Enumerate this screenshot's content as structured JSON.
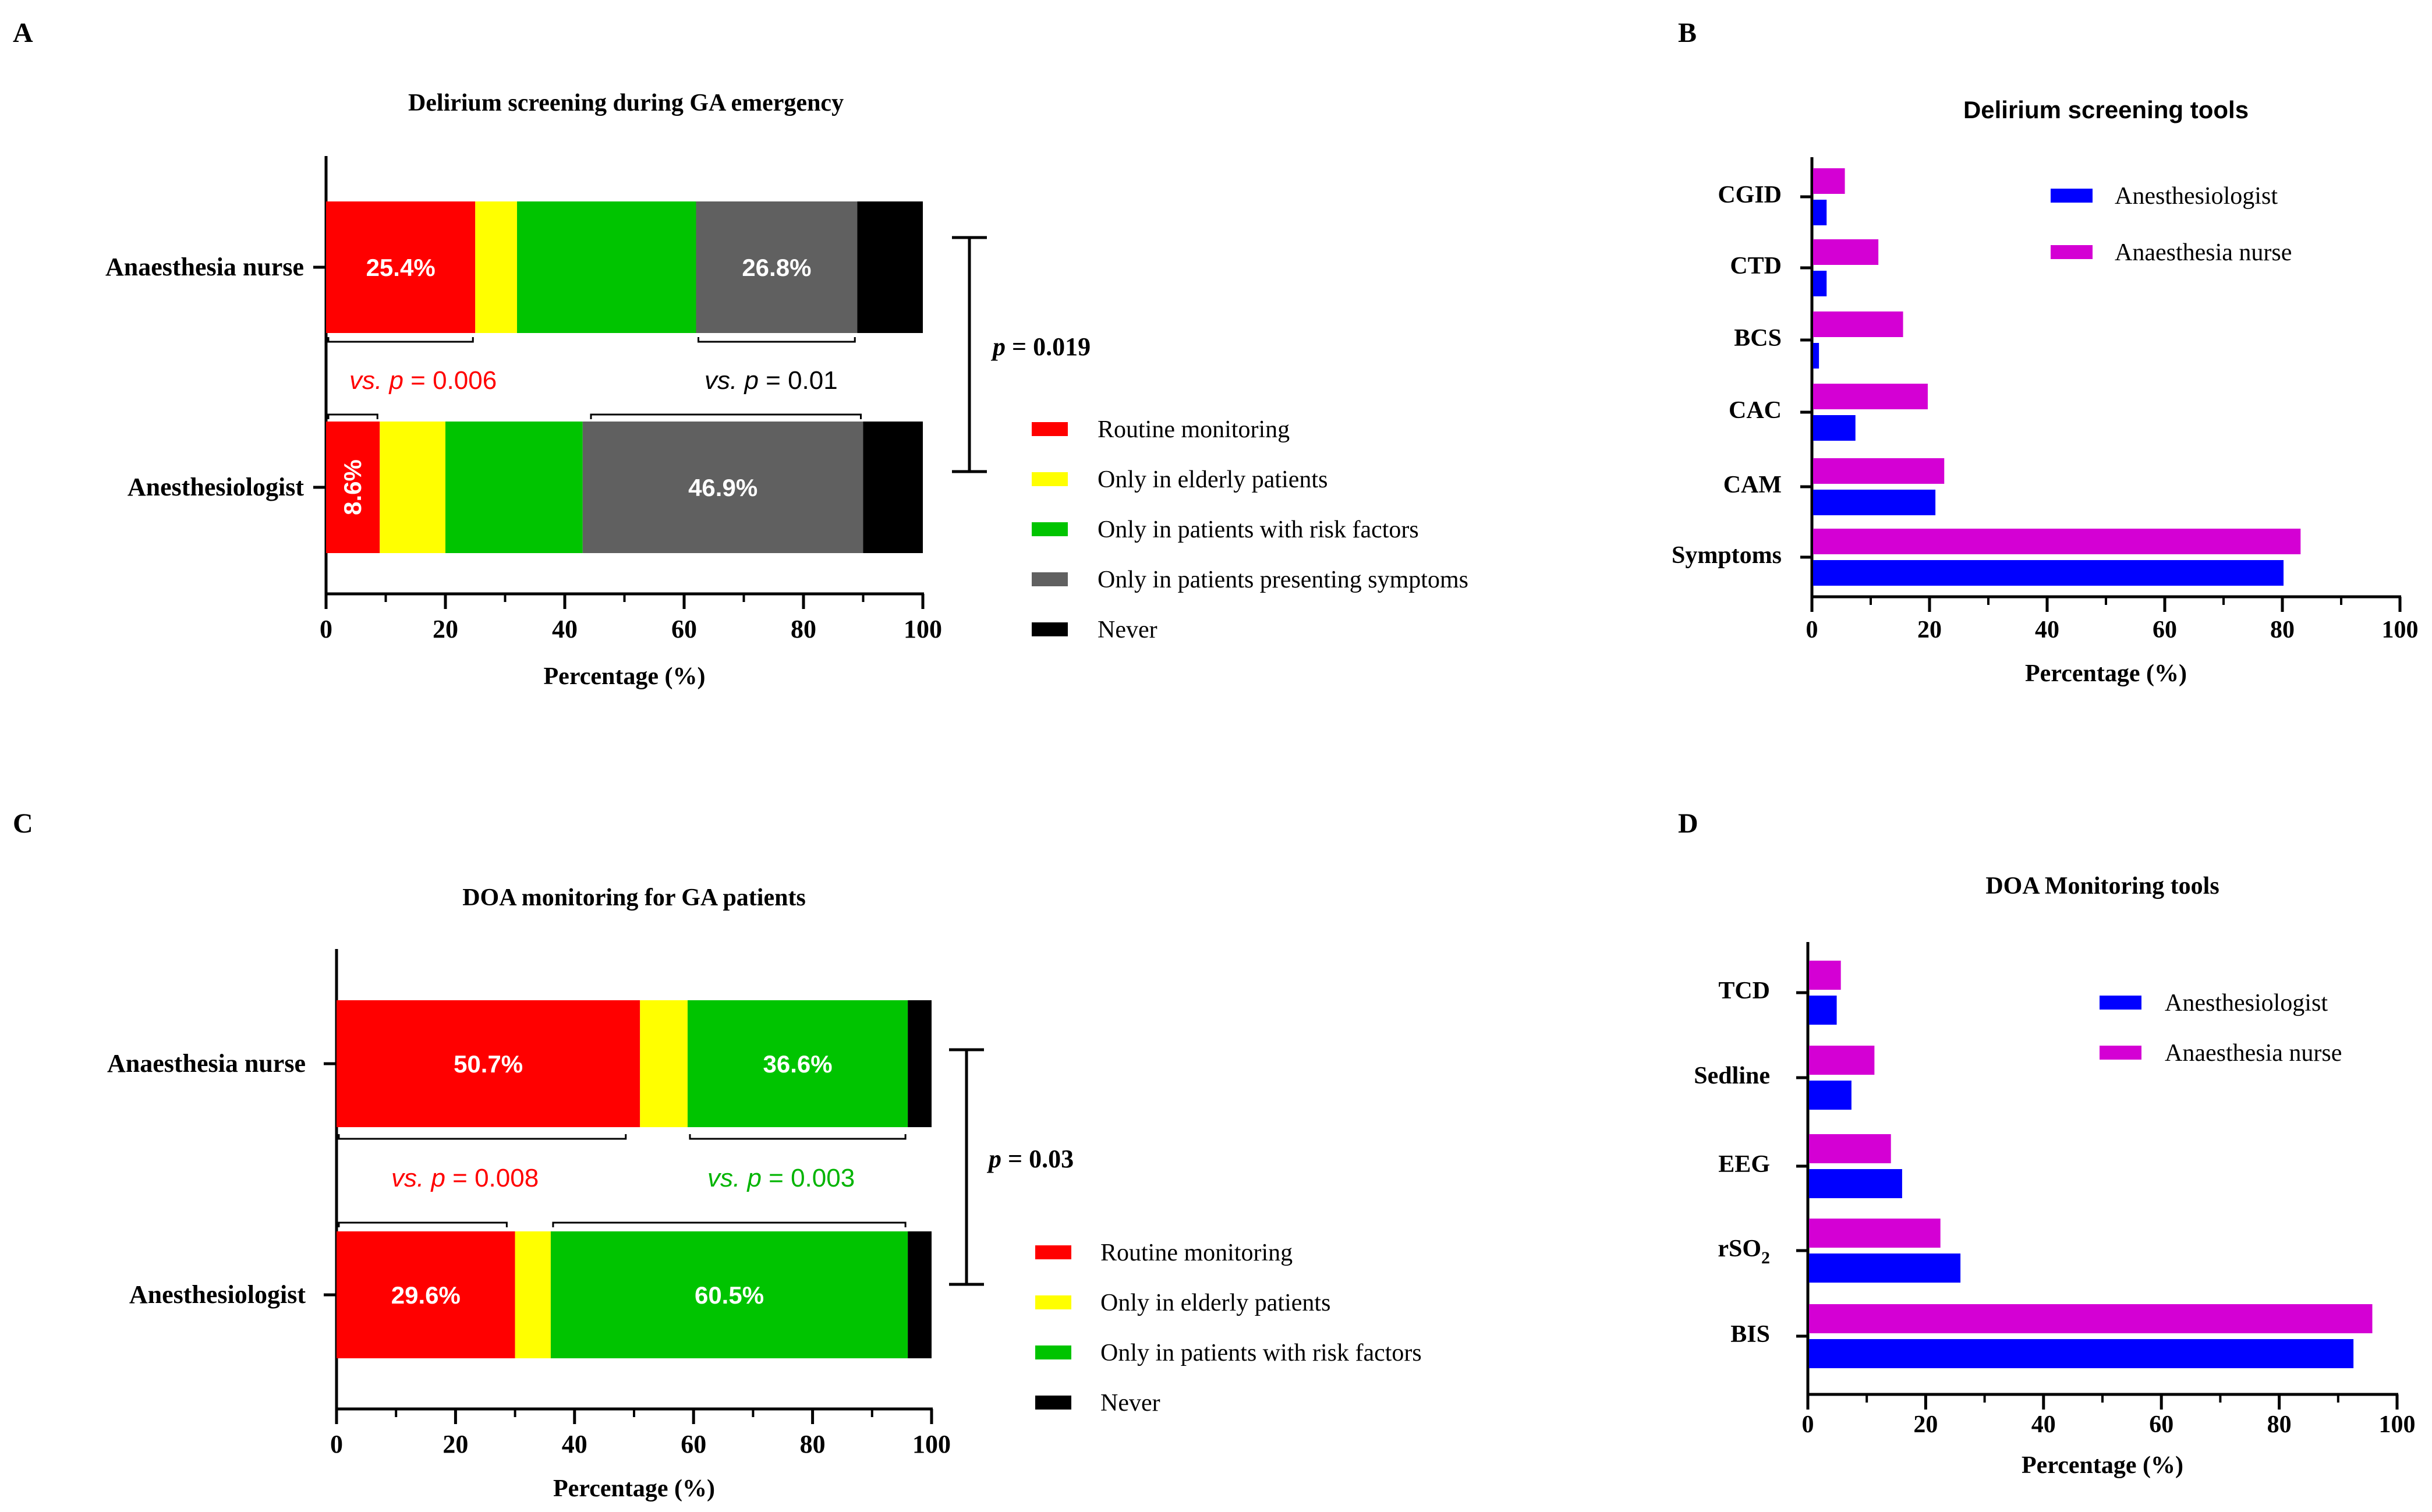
{
  "chart_data": [
    {
      "id": "A",
      "panel_letter": "A",
      "type": "bar",
      "stacked": true,
      "orientation": "horizontal",
      "title": "Delirium screening during GA emergency",
      "xlabel": "Percentage (%)",
      "ylabel": "",
      "xlim": [
        0,
        100
      ],
      "xticks": [
        0,
        20,
        40,
        60,
        80,
        100
      ],
      "categories": [
        "Anaesthesia nurse",
        "Anesthesiologist"
      ],
      "series": [
        {
          "name": "Routine monitoring",
          "color": "#ff0000",
          "values": [
            25,
            9
          ]
        },
        {
          "name": "Only in elderly patients",
          "color": "#ffff00",
          "values": [
            7,
            11
          ]
        },
        {
          "name": "Only in patients with risk factors",
          "color": "#00c400",
          "values": [
            30,
            23
          ]
        },
        {
          "name": "Only in patients presenting symptoms",
          "color": "#606060",
          "values": [
            27,
            47
          ]
        },
        {
          "name": "Never",
          "color": "#000000",
          "values": [
            11,
            10
          ]
        }
      ],
      "bar_labels": [
        {
          "category": 0,
          "series": 0,
          "text": "25.4%",
          "rotated": false
        },
        {
          "category": 0,
          "series": 3,
          "text": "26.8%",
          "rotated": false
        },
        {
          "category": 1,
          "series": 0,
          "text": "8.6%",
          "rotated": true
        },
        {
          "category": 1,
          "series": 3,
          "text": "46.9%",
          "rotated": false
        }
      ],
      "comparisons": [
        {
          "prefix": "vs.",
          "p": "p",
          "text": " = 0.006",
          "color": "#ff0000",
          "top_range": [
            0,
            25
          ],
          "bottom_range": [
            0,
            9
          ]
        },
        {
          "prefix": "vs.",
          "p": "p",
          "text": " = 0.01",
          "color": "#000000",
          "top_range": [
            62,
            89
          ],
          "bottom_range": [
            44,
            90
          ]
        }
      ],
      "overall": {
        "p": "p",
        "text": " = 0.019"
      },
      "legend": "right"
    },
    {
      "id": "B",
      "panel_letter": "B",
      "type": "bar",
      "orientation": "horizontal",
      "title": "Delirium screening tools",
      "xlabel": "Percentage (%)",
      "ylabel": "",
      "xlim": [
        0,
        100
      ],
      "xticks": [
        0,
        20,
        40,
        60,
        80,
        100
      ],
      "categories": [
        "CGID",
        "CTD",
        "BCS",
        "CAC",
        "CAM",
        "Symptoms"
      ],
      "series": [
        {
          "name": "Anesthesiologist",
          "color": "#0000ff",
          "values": [
            2.5,
            2.5,
            1.2,
            7.4,
            21,
            80.2
          ]
        },
        {
          "name": "Anaesthesia nurse",
          "color": "#d400d4",
          "values": [
            5.6,
            11.3,
            15.5,
            19.7,
            22.5,
            83.1
          ]
        }
      ],
      "legend": "top-right"
    },
    {
      "id": "C",
      "panel_letter": "C",
      "type": "bar",
      "stacked": true,
      "orientation": "horizontal",
      "title": "DOA monitoring for GA patients",
      "xlabel": "Percentage (%)",
      "ylabel": "",
      "xlim": [
        0,
        100
      ],
      "xticks": [
        0,
        20,
        40,
        60,
        80,
        100
      ],
      "categories": [
        "Anaesthesia nurse",
        "Anesthesiologist"
      ],
      "series": [
        {
          "name": "Routine monitoring",
          "color": "#ff0000",
          "values": [
            51,
            30
          ]
        },
        {
          "name": "Only in elderly patients",
          "color": "#ffff00",
          "values": [
            8,
            6
          ]
        },
        {
          "name": "Only in patients with risk factors",
          "color": "#00c400",
          "values": [
            37,
            60
          ]
        },
        {
          "name": "Never",
          "color": "#000000",
          "values": [
            4,
            4
          ]
        }
      ],
      "bar_labels": [
        {
          "category": 0,
          "series": 0,
          "text": "50.7%",
          "rotated": false
        },
        {
          "category": 0,
          "series": 2,
          "text": "36.6%",
          "rotated": false
        },
        {
          "category": 1,
          "series": 0,
          "text": "29.6%",
          "rotated": false
        },
        {
          "category": 1,
          "series": 2,
          "text": "60.5%",
          "rotated": false
        }
      ],
      "comparisons": [
        {
          "prefix": "vs.",
          "p": "p",
          "text": " = 0.008",
          "color": "#ff0000",
          "top_range": [
            0,
            49
          ],
          "bottom_range": [
            0,
            29
          ]
        },
        {
          "prefix": "vs.",
          "p": "p",
          "text": " = 0.003",
          "color": "#00b400",
          "top_range": [
            59,
            96
          ],
          "bottom_range": [
            36,
            96
          ]
        }
      ],
      "overall": {
        "p": "p",
        "text": " = 0.03"
      },
      "legend": "right"
    },
    {
      "id": "D",
      "panel_letter": "D",
      "type": "bar",
      "orientation": "horizontal",
      "title": "DOA Monitoring tools",
      "xlabel": "Percentage (%)",
      "ylabel": "",
      "xlim": [
        0,
        100
      ],
      "xticks": [
        0,
        20,
        40,
        60,
        80,
        100
      ],
      "categories": [
        "TCD",
        "Sedline",
        "EEG",
        "rSO",
        "BIS"
      ],
      "category_subscripts": [
        "",
        "",
        "",
        "2",
        ""
      ],
      "series": [
        {
          "name": "Anesthesiologist",
          "color": "#0000ff",
          "values": [
            4.9,
            7.4,
            16,
            25.9,
            92.6
          ]
        },
        {
          "name": "Anaesthesia nurse",
          "color": "#d400d4",
          "values": [
            5.6,
            11.3,
            14.1,
            22.5,
            95.8
          ]
        }
      ],
      "legend": "top-right"
    }
  ]
}
